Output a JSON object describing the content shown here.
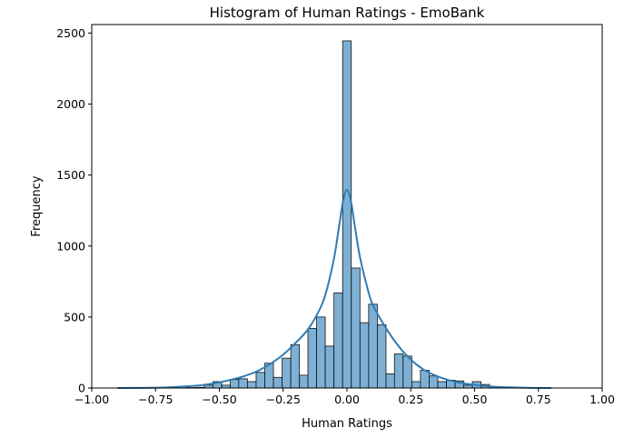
{
  "chart_data": {
    "type": "bar",
    "title": "Histogram of Human Ratings - EmoBank",
    "xlabel": "Human Ratings",
    "ylabel": "Frequency",
    "xlim": [
      -1.0,
      1.0
    ],
    "ylim": [
      0,
      2560
    ],
    "xticks": [
      "−1.00",
      "−0.75",
      "−0.50",
      "−0.25",
      "0.00",
      "0.25",
      "0.50",
      "0.75",
      "1.00"
    ],
    "xtick_values": [
      -1.0,
      -0.75,
      -0.5,
      -0.25,
      0.0,
      0.25,
      0.5,
      0.75,
      1.0
    ],
    "yticks": [
      "0",
      "500",
      "1000",
      "1500",
      "2000",
      "2500"
    ],
    "ytick_values": [
      0,
      500,
      1000,
      1500,
      2000,
      2500
    ],
    "bin_width": 0.0339,
    "bin_start": -0.898,
    "bins": [
      {
        "x0": -0.898,
        "value": 0
      },
      {
        "x0": -0.864,
        "value": 0
      },
      {
        "x0": -0.83,
        "value": 0
      },
      {
        "x0": -0.796,
        "value": 0
      },
      {
        "x0": -0.762,
        "value": 0
      },
      {
        "x0": -0.729,
        "value": 0
      },
      {
        "x0": -0.695,
        "value": 0
      },
      {
        "x0": -0.661,
        "value": 2
      },
      {
        "x0": -0.627,
        "value": 3
      },
      {
        "x0": -0.593,
        "value": 5
      },
      {
        "x0": -0.559,
        "value": 20
      },
      {
        "x0": -0.525,
        "value": 45
      },
      {
        "x0": -0.491,
        "value": 20
      },
      {
        "x0": -0.457,
        "value": 60
      },
      {
        "x0": -0.424,
        "value": 65
      },
      {
        "x0": -0.39,
        "value": 45
      },
      {
        "x0": -0.356,
        "value": 110
      },
      {
        "x0": -0.322,
        "value": 175
      },
      {
        "x0": -0.288,
        "value": 75
      },
      {
        "x0": -0.254,
        "value": 210
      },
      {
        "x0": -0.22,
        "value": 305
      },
      {
        "x0": -0.186,
        "value": 90
      },
      {
        "x0": -0.153,
        "value": 420
      },
      {
        "x0": -0.119,
        "value": 500
      },
      {
        "x0": -0.085,
        "value": 295
      },
      {
        "x0": -0.051,
        "value": 670
      },
      {
        "x0": -0.017,
        "value": 2445
      },
      {
        "x0": 0.017,
        "value": 845
      },
      {
        "x0": 0.051,
        "value": 460
      },
      {
        "x0": 0.085,
        "value": 590
      },
      {
        "x0": 0.119,
        "value": 445
      },
      {
        "x0": 0.153,
        "value": 100
      },
      {
        "x0": 0.186,
        "value": 240
      },
      {
        "x0": 0.22,
        "value": 225
      },
      {
        "x0": 0.254,
        "value": 45
      },
      {
        "x0": 0.288,
        "value": 125
      },
      {
        "x0": 0.322,
        "value": 85
      },
      {
        "x0": 0.356,
        "value": 45
      },
      {
        "x0": 0.39,
        "value": 55
      },
      {
        "x0": 0.424,
        "value": 50
      },
      {
        "x0": 0.457,
        "value": 20
      },
      {
        "x0": 0.491,
        "value": 45
      },
      {
        "x0": 0.525,
        "value": 25
      },
      {
        "x0": 0.559,
        "value": 8
      },
      {
        "x0": 0.593,
        "value": 5
      },
      {
        "x0": 0.627,
        "value": 3
      },
      {
        "x0": 0.661,
        "value": 2
      },
      {
        "x0": 0.695,
        "value": 1
      },
      {
        "x0": 0.729,
        "value": 1
      },
      {
        "x0": 0.762,
        "value": 0
      }
    ],
    "kde": {
      "x": [
        -0.9,
        -0.8,
        -0.7,
        -0.6,
        -0.55,
        -0.5,
        -0.45,
        -0.4,
        -0.35,
        -0.3,
        -0.25,
        -0.2,
        -0.15,
        -0.1,
        -0.075,
        -0.05,
        -0.03,
        -0.015,
        0.0,
        0.015,
        0.03,
        0.05,
        0.075,
        0.1,
        0.15,
        0.2,
        0.25,
        0.3,
        0.35,
        0.4,
        0.45,
        0.5,
        0.55,
        0.6,
        0.7,
        0.8
      ],
      "y": [
        0,
        1,
        5,
        15,
        25,
        40,
        60,
        85,
        120,
        170,
        235,
        320,
        420,
        580,
        720,
        920,
        1150,
        1320,
        1395,
        1320,
        1150,
        930,
        740,
        590,
        430,
        300,
        200,
        130,
        85,
        55,
        35,
        22,
        13,
        7,
        2,
        0
      ]
    },
    "grid": false,
    "colors": {
      "bar_fill": "#7eb0d5",
      "bar_edge": "#111111",
      "kde_line": "#2f7bb3"
    }
  }
}
